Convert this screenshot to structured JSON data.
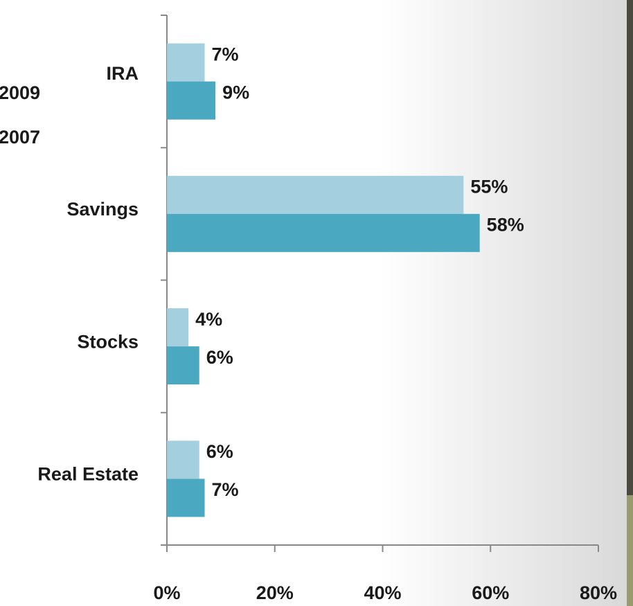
{
  "chart_data": {
    "type": "barh",
    "categories": [
      "IRA",
      "Savings",
      "Stocks",
      "Real Estate"
    ],
    "series": [
      {
        "name": "2009",
        "color": "#a4cfdf",
        "values": [
          7,
          55,
          4,
          6
        ],
        "value_labels": [
          "7%",
          "55%",
          "4%",
          "6%"
        ]
      },
      {
        "name": "2007",
        "color": "#4aa8c0",
        "values": [
          9,
          58,
          6,
          7
        ],
        "value_labels": [
          "9%",
          "58%",
          "6%",
          "7%"
        ]
      }
    ],
    "xlim": [
      0,
      80
    ],
    "xticks": [
      {
        "value": 0,
        "label": "0%"
      },
      {
        "value": 20,
        "label": "20%"
      },
      {
        "value": 40,
        "label": "40%"
      },
      {
        "value": 60,
        "label": "60%"
      },
      {
        "value": 80,
        "label": "80%"
      }
    ],
    "grid": false,
    "legend": "left"
  }
}
